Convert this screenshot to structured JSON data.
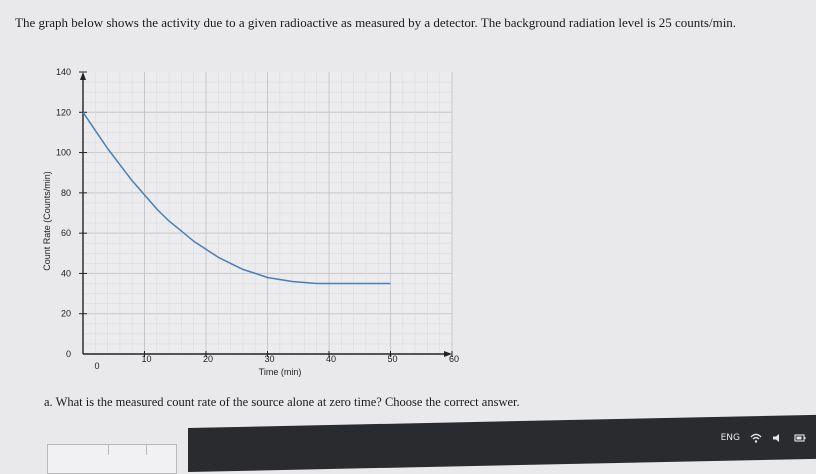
{
  "question": {
    "intro": "The graph below shows the activity due to a given radioactive as measured by a detector. The background radiation level is 25 counts/min.",
    "part_a": "a. What is the measured count rate of the source alone at zero time? Choose the correct answer."
  },
  "chart_data": {
    "type": "line",
    "title": "",
    "xlabel": "Time (min)",
    "ylabel": "Count Rate (Counts/min)",
    "xlim": [
      0,
      60
    ],
    "ylim": [
      0,
      140
    ],
    "x_ticks": [
      "0",
      "10",
      "20",
      "30",
      "40",
      "50",
      "60"
    ],
    "y_ticks": [
      "0",
      "20",
      "40",
      "60",
      "80",
      "100",
      "120",
      "140"
    ],
    "grid": true,
    "series": [
      {
        "color": "#4a7fb5",
        "x": [
          0,
          2,
          4,
          6,
          8,
          10,
          12,
          14,
          16,
          18,
          20,
          22,
          24,
          26,
          28,
          30,
          34,
          38,
          42,
          46,
          50
        ],
        "y": [
          120,
          111,
          102,
          94,
          86,
          79,
          72,
          66,
          61,
          56,
          52,
          48,
          45,
          42,
          40,
          38,
          36,
          35,
          35,
          35,
          35
        ]
      }
    ]
  },
  "tray": {
    "language": "ENG"
  },
  "colors": {
    "background": "#e9e9eb",
    "grid": "#cfd0d3",
    "curve": "#4a7fb5",
    "taskbar": "#2a2b2e"
  }
}
